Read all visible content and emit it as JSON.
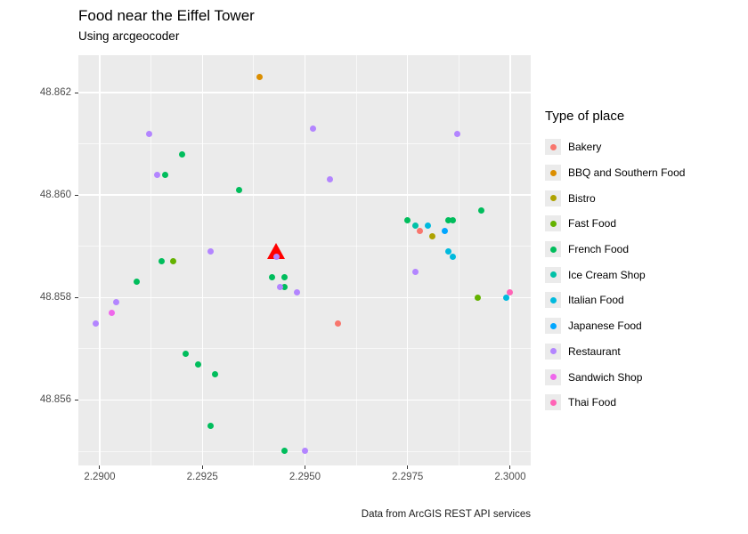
{
  "header": {
    "title": "Food near the Eiffel Tower",
    "subtitle": "Using arcgeocoder"
  },
  "caption": "Data from ArcGIS REST API services",
  "legend": {
    "title": "Type of place",
    "items": [
      {
        "label": "Bakery",
        "color": "#F8766D"
      },
      {
        "label": "BBQ and Southern Food",
        "color": "#DB8E00"
      },
      {
        "label": "Bistro",
        "color": "#AEA200"
      },
      {
        "label": "Fast Food",
        "color": "#64B200"
      },
      {
        "label": "French Food",
        "color": "#00BD5C"
      },
      {
        "label": "Ice Cream Shop",
        "color": "#00C1A7"
      },
      {
        "label": "Italian Food",
        "color": "#00BADE"
      },
      {
        "label": "Japanese Food",
        "color": "#00A6FF"
      },
      {
        "label": "Restaurant",
        "color": "#B385FF"
      },
      {
        "label": "Sandwich Shop",
        "color": "#EF67EB"
      },
      {
        "label": "Thai Food",
        "color": "#FF63B6"
      }
    ]
  },
  "panel_bg": "#EBEBEB",
  "chart_data": {
    "type": "scatter",
    "title": "Food near the Eiffel Tower",
    "subtitle": "Using arcgeocoder",
    "xlabel": "",
    "ylabel": "",
    "grid": "on",
    "legend_position": "right",
    "x_axis": {
      "domain": [
        2.28948,
        2.3005
      ],
      "ticks": [
        {
          "v": 2.29,
          "label": "2.2900"
        },
        {
          "v": 2.2925,
          "label": "2.2925"
        },
        {
          "v": 2.295,
          "label": "2.2950"
        },
        {
          "v": 2.2975,
          "label": "2.2975"
        },
        {
          "v": 2.3,
          "label": "2.3000"
        }
      ],
      "minor": [
        2.29125,
        2.29375,
        2.29625,
        2.29875
      ]
    },
    "y_axis": {
      "domain": [
        48.86273,
        48.85472
      ],
      "ticks": [
        {
          "v": 48.862,
          "label": "48.862"
        },
        {
          "v": 48.86,
          "label": "48.860"
        },
        {
          "v": 48.858,
          "label": "48.858"
        },
        {
          "v": 48.856,
          "label": "48.856"
        }
      ],
      "minor": [
        48.861,
        48.859,
        48.857,
        48.855
      ]
    },
    "series": [
      {
        "name": "Bakery",
        "color": "#F8766D",
        "points": [
          [
            2.2978,
            48.8593
          ],
          [
            2.2958,
            48.8575
          ]
        ]
      },
      {
        "name": "BBQ and Southern Food",
        "color": "#DB8E00",
        "points": [
          [
            2.2939,
            48.8623
          ]
        ]
      },
      {
        "name": "Bistro",
        "color": "#AEA200",
        "points": [
          [
            2.2981,
            48.8592
          ]
        ]
      },
      {
        "name": "Fast Food",
        "color": "#64B200",
        "points": [
          [
            2.2918,
            48.8587
          ],
          [
            2.2992,
            48.858
          ]
        ]
      },
      {
        "name": "French Food",
        "color": "#00BD5C",
        "points": [
          [
            2.292,
            48.8608
          ],
          [
            2.2916,
            48.8604
          ],
          [
            2.2934,
            48.8601
          ],
          [
            2.2993,
            48.8597
          ],
          [
            2.2975,
            48.8595
          ],
          [
            2.2985,
            48.8595
          ],
          [
            2.2986,
            48.8595
          ],
          [
            2.2915,
            48.8587
          ],
          [
            2.2909,
            48.8583
          ],
          [
            2.2942,
            48.8584
          ],
          [
            2.2945,
            48.8584
          ],
          [
            2.2945,
            48.8582
          ],
          [
            2.2921,
            48.8569
          ],
          [
            2.2924,
            48.8567
          ],
          [
            2.2928,
            48.8565
          ],
          [
            2.2927,
            48.8555
          ],
          [
            2.2945,
            48.855
          ]
        ]
      },
      {
        "name": "Ice Cream Shop",
        "color": "#00C1A7",
        "points": [
          [
            2.2977,
            48.8594
          ]
        ]
      },
      {
        "name": "Italian Food",
        "color": "#00BADE",
        "points": [
          [
            2.298,
            48.8594
          ],
          [
            2.2985,
            48.8589
          ],
          [
            2.2986,
            48.8588
          ],
          [
            2.2999,
            48.858
          ]
        ]
      },
      {
        "name": "Japanese Food",
        "color": "#00A6FF",
        "points": [
          [
            2.2984,
            48.8593
          ]
        ]
      },
      {
        "name": "Restaurant",
        "color": "#B385FF",
        "points": [
          [
            2.2912,
            48.8612
          ],
          [
            2.2952,
            48.8613
          ],
          [
            2.2987,
            48.8612
          ],
          [
            2.2914,
            48.8604
          ],
          [
            2.2956,
            48.8603
          ],
          [
            2.2927,
            48.8589
          ],
          [
            2.2943,
            48.8588
          ],
          [
            2.2977,
            48.8585
          ],
          [
            2.2944,
            48.8582
          ],
          [
            2.2948,
            48.8581
          ],
          [
            2.2904,
            48.8579
          ],
          [
            2.2899,
            48.8575
          ],
          [
            2.295,
            48.855
          ]
        ]
      },
      {
        "name": "Sandwich Shop",
        "color": "#EF67EB",
        "points": [
          [
            2.2903,
            48.8577
          ]
        ]
      },
      {
        "name": "Thai Food",
        "color": "#FF63B6",
        "points": [
          [
            2.3,
            48.8581
          ]
        ]
      }
    ],
    "annotation_marker": {
      "name": "eiffel-tower-marker",
      "shape": "triangle",
      "color": "#FF0000",
      "point": [
        2.2943,
        48.8589
      ]
    }
  }
}
